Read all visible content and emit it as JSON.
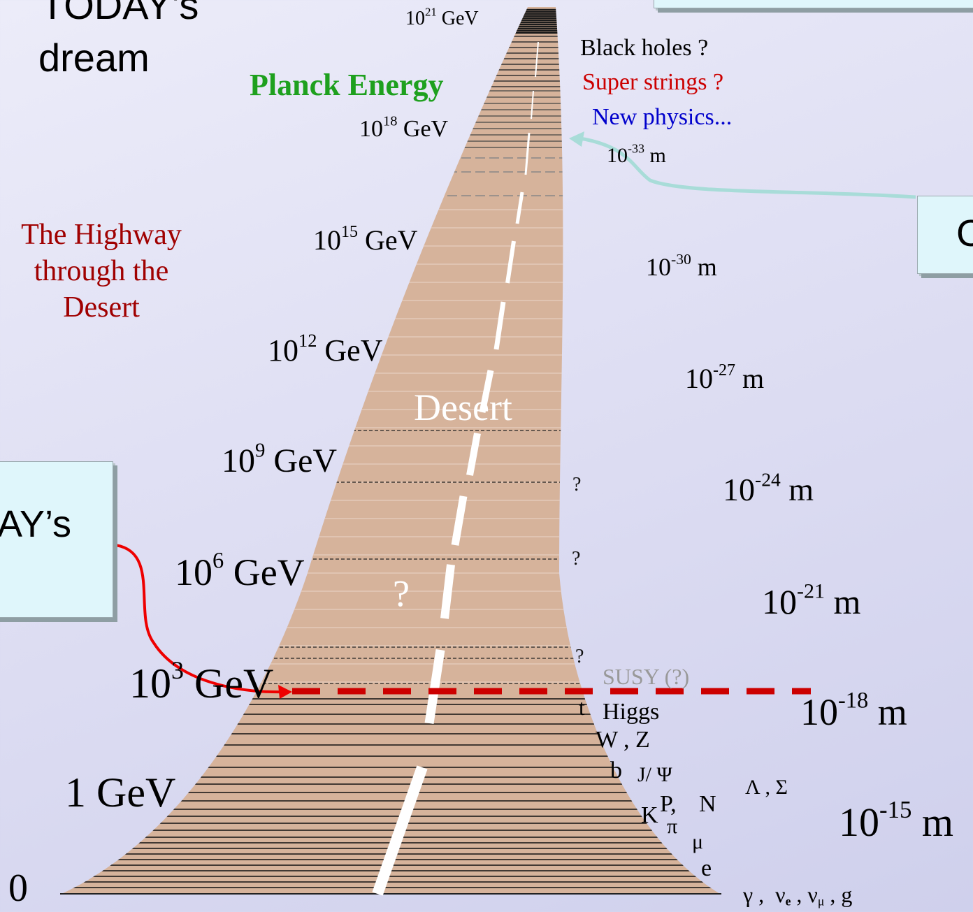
{
  "title": {
    "line1": "TODAY's",
    "line2": "dream"
  },
  "highway_caption": {
    "line1": "The  Highway",
    "line2": "through  the",
    "line3": "Desert"
  },
  "left_box_text": "AY’s",
  "right_box_text": "C",
  "top_box": {},
  "planck": "Planck  Energy",
  "speculations": {
    "black_holes": "Black  holes ?",
    "super_strings": "Super strings ?",
    "new_physics": "New  physics..."
  },
  "desert_label": "Desert",
  "road_question": "?",
  "energy_scale": [
    {
      "base": "10",
      "exp": "21",
      "unit": " GeV"
    },
    {
      "base": "10",
      "exp": "18",
      "unit": " GeV"
    },
    {
      "base": "10",
      "exp": "15",
      "unit": " GeV"
    },
    {
      "base": "10",
      "exp": "12",
      "unit": " GeV"
    },
    {
      "base": "10",
      "exp": "9",
      "unit": " GeV"
    },
    {
      "base": "10",
      "exp": "6",
      "unit": " GeV"
    },
    {
      "base": "10",
      "exp": "3",
      "unit": " GeV"
    },
    {
      "text": "1  GeV"
    },
    {
      "text": "0"
    }
  ],
  "distance_scale": [
    {
      "base": "10",
      "exp": "-33",
      "unit": " m"
    },
    {
      "base": "10",
      "exp": "-30",
      "unit": " m"
    },
    {
      "base": "10",
      "exp": "-27",
      "unit": " m"
    },
    {
      "base": "10",
      "exp": "-24",
      "unit": " m"
    },
    {
      "base": "10",
      "exp": "-21",
      "unit": " m"
    },
    {
      "base": "10",
      "exp": "-18",
      "unit": " m"
    },
    {
      "base": "10",
      "exp": "-15",
      "unit": " m"
    }
  ],
  "question_marks": [
    "?",
    "?",
    "?"
  ],
  "susy": "SUSY (?)",
  "particles": {
    "t": "t",
    "higgs": "Higgs",
    "wz": "W , Z",
    "b": "b",
    "jpsi": "J/ Ψ",
    "lambda_sigma": "Λ , Σ",
    "k": "K",
    "p": "P,",
    "n": "N",
    "pi": "π",
    "mu": "μ",
    "e": "e",
    "bottom": {
      "gamma": "γ ,",
      "nu": "ν",
      "e_sub": "e",
      "comma": " ,",
      "nu2": " ν",
      "mu_sub": "μ",
      "g": " ,  g"
    }
  },
  "colors": {
    "road": "#d6b39b",
    "planck": "#1ea01e",
    "highway_caption": "#a00000",
    "super_strings": "#cc0000",
    "new_physics": "#0000cc",
    "susy": "#999999",
    "red_line": "#cc0000",
    "red_arrow": "#ee0000",
    "cyan_arrow": "#a8dcd8",
    "box": "#dff6fb"
  }
}
